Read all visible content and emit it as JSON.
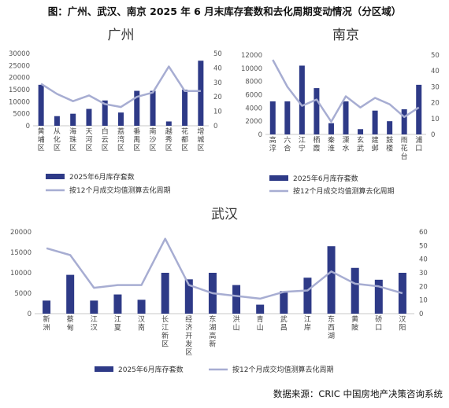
{
  "title": "图：广州、武汉、南京 2025 年 6 月末库存套数和去化周期变动情况（分区域）",
  "source": "数据来源：CRIC 中国房地产决策咨询系统",
  "colors": {
    "bar": "#2E3A87",
    "line": "#A7ADD2"
  },
  "chart_data": [
    {
      "type": "bar+line",
      "title": "广州",
      "categories": [
        "黄埔区",
        "从化区",
        "海珠区",
        "天河区",
        "白云区",
        "荔湾区",
        "番禺区",
        "南沙区",
        "越秀区",
        "花都区",
        "增城区"
      ],
      "series": [
        {
          "name": "2025年6月库存套数",
          "type": "bar",
          "axis": "left",
          "values": [
            17000,
            4000,
            5000,
            7000,
            10500,
            5500,
            14500,
            14500,
            1800,
            15000,
            27000
          ]
        },
        {
          "name": "按12个月成交均值测算去化周期",
          "type": "line",
          "axis": "right",
          "values": [
            29,
            22,
            17,
            21,
            15,
            13,
            20,
            23,
            41,
            24,
            24
          ]
        }
      ],
      "ylim_left": [
        0,
        30000
      ],
      "yticks_left": [
        0,
        5000,
        10000,
        15000,
        20000,
        25000,
        30000
      ],
      "ylim_right": [
        0,
        50
      ],
      "yticks_right": [
        0,
        10,
        20,
        30,
        40,
        50
      ],
      "legend": "bottom"
    },
    {
      "type": "bar+line",
      "title": "南京",
      "categories": [
        "高淳",
        "六合",
        "江宁",
        "栖霞",
        "秦淮",
        "溧水",
        "玄武",
        "建邺",
        "鼓楼",
        "雨花台",
        "浦口"
      ],
      "series": [
        {
          "name": "2025年6月库存套数",
          "type": "bar",
          "axis": "left",
          "values": [
            5000,
            5000,
            10400,
            7000,
            1700,
            5000,
            800,
            3600,
            2000,
            3800,
            7500
          ]
        },
        {
          "name": "按12个月成交均值测算去化周期",
          "type": "line",
          "axis": "right",
          "values": [
            47,
            30,
            18,
            22,
            8,
            24,
            17,
            23,
            19,
            11,
            17
          ]
        }
      ],
      "ylim_left": [
        0,
        12000
      ],
      "yticks_left": [
        0,
        2000,
        4000,
        6000,
        8000,
        10000,
        12000
      ],
      "ylim_right": [
        0,
        50
      ],
      "yticks_right": [
        0,
        10,
        20,
        30,
        40,
        50
      ],
      "legend": "bottom"
    },
    {
      "type": "bar+line",
      "title": "武汉",
      "categories": [
        "新洲",
        "蔡甸",
        "江汉",
        "江夏",
        "汉南",
        "长江新区",
        "经济开发区",
        "东湖高新",
        "洪山",
        "青山",
        "武昌",
        "江岸",
        "东西湖",
        "黄陂",
        "硚口",
        "汉阳"
      ],
      "series": [
        {
          "name": "2025年6月库存套数",
          "type": "bar",
          "axis": "left",
          "values": [
            3200,
            9500,
            3200,
            4700,
            3400,
            10000,
            8400,
            10000,
            7000,
            2200,
            5500,
            8800,
            16500,
            11200,
            8300,
            10000
          ]
        },
        {
          "name": "按12个月成交均值测算去化周期",
          "type": "line",
          "axis": "right",
          "values": [
            48,
            43,
            19,
            21,
            21,
            55,
            21,
            15,
            13,
            11,
            16,
            17,
            31,
            22,
            20,
            15
          ]
        }
      ],
      "ylim_left": [
        0,
        20000
      ],
      "yticks_left": [
        0,
        5000,
        10000,
        15000,
        20000
      ],
      "ylim_right": [
        0,
        60
      ],
      "yticks_right": [
        0,
        10,
        20,
        30,
        40,
        50,
        60
      ],
      "legend": "bottom"
    }
  ]
}
